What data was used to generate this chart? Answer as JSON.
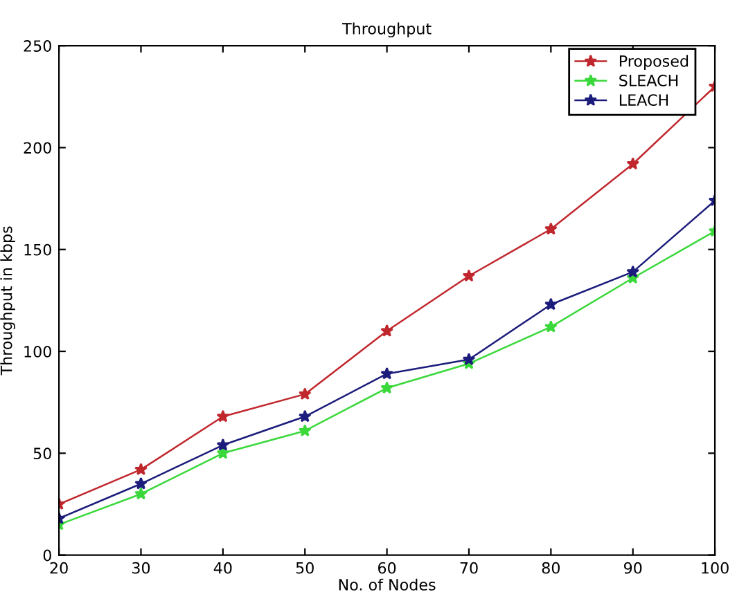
{
  "chart_data": {
    "type": "line",
    "title": "Throughput",
    "xlabel": "No. of Nodes",
    "ylabel": "Throughput in kbps",
    "x": [
      20,
      30,
      40,
      50,
      60,
      70,
      80,
      90,
      100
    ],
    "series": [
      {
        "name": "Proposed",
        "color": "#c0272d",
        "values": [
          25,
          42,
          68,
          79,
          110,
          137,
          160,
          192,
          230
        ]
      },
      {
        "name": "SLEACH",
        "color": "#3ad83a",
        "values": [
          15,
          30,
          50,
          61,
          82,
          94,
          112,
          136,
          159
        ]
      },
      {
        "name": "LEACH",
        "color": "#1c1c7c",
        "values": [
          18,
          35,
          54,
          68,
          89,
          96,
          123,
          139,
          174
        ]
      }
    ],
    "xlim": [
      20,
      100
    ],
    "ylim": [
      0,
      250
    ],
    "xticks": [
      20,
      30,
      40,
      50,
      60,
      70,
      80,
      90,
      100
    ],
    "yticks": [
      0,
      50,
      100,
      150,
      200,
      250
    ],
    "grid": false,
    "legend": "top right",
    "marker": "star",
    "line_style": "solid"
  }
}
